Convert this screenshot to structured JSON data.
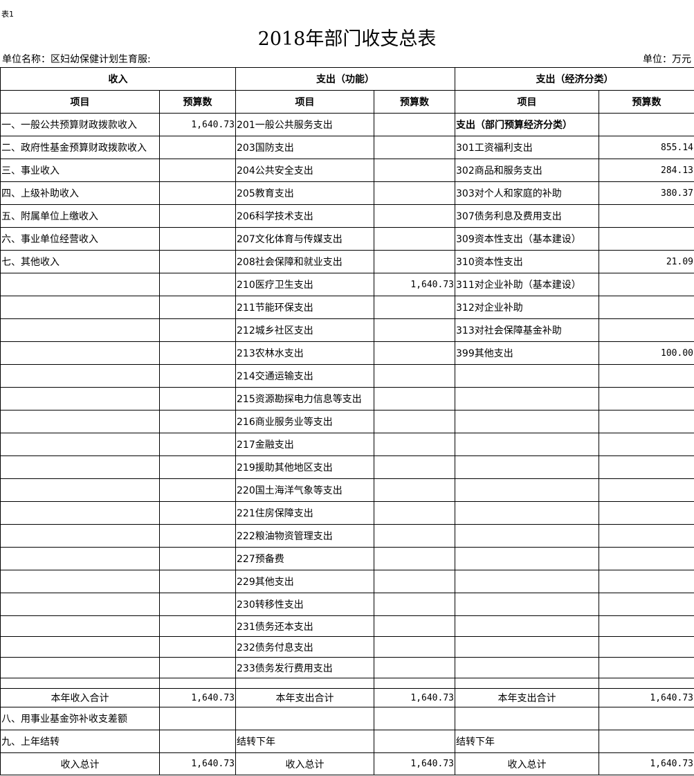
{
  "tag": "表1",
  "title": "2018年部门收支总表",
  "unit_name": "单位名称：区妇幼保健计划生育服:",
  "unit": "单位：万元",
  "groups": [
    "收入",
    "支出（功能）",
    "支出（经济分类）"
  ],
  "subheaders": [
    "项目",
    "预算数",
    "项目",
    "预算数",
    "项目",
    "预算数"
  ],
  "rows": [
    [
      "一、一般公共预算财政拨款收入",
      "1,640.73",
      "201一般公共服务支出",
      "",
      "支出（部门预算经济分类）",
      ""
    ],
    [
      "二、政府性基金预算财政拨款收入",
      "",
      "203国防支出",
      "",
      "301工资福利支出",
      "855.14"
    ],
    [
      "三、事业收入",
      "",
      "204公共安全支出",
      "",
      "302商品和服务支出",
      "284.13"
    ],
    [
      "四、上级补助收入",
      "",
      "205教育支出",
      "",
      "303对个人和家庭的补助",
      "380.37"
    ],
    [
      "五、附属单位上缴收入",
      "",
      "206科学技术支出",
      "",
      "307债务利息及费用支出",
      ""
    ],
    [
      "六、事业单位经营收入",
      "",
      "207文化体育与传媒支出",
      "",
      "309资本性支出（基本建设）",
      ""
    ],
    [
      "七、其他收入",
      "",
      "208社会保障和就业支出",
      "",
      "310资本性支出",
      "21.09"
    ],
    [
      "",
      "",
      "210医疗卫生支出",
      "1,640.73",
      "311对企业补助（基本建设）",
      ""
    ],
    [
      "",
      "",
      "211节能环保支出",
      "",
      "312对企业补助",
      ""
    ],
    [
      "",
      "",
      "212城乡社区支出",
      "",
      "313对社会保障基金补助",
      ""
    ],
    [
      "",
      "",
      "213农林水支出",
      "",
      "399其他支出",
      "100.00"
    ],
    [
      "",
      "",
      "214交通运输支出",
      "",
      "",
      ""
    ],
    [
      "",
      "",
      "215资源勘探电力信息等支出",
      "",
      "",
      ""
    ],
    [
      "",
      "",
      "216商业服务业等支出",
      "",
      "",
      ""
    ],
    [
      "",
      "",
      "217金融支出",
      "",
      "",
      ""
    ],
    [
      "",
      "",
      "219援助其他地区支出",
      "",
      "",
      ""
    ],
    [
      "",
      "",
      "220国土海洋气象等支出",
      "",
      "",
      ""
    ],
    [
      "",
      "",
      "221住房保障支出",
      "",
      "",
      ""
    ],
    [
      "",
      "",
      "222粮油物资管理支出",
      "",
      "",
      ""
    ],
    [
      "",
      "",
      "227预备费",
      "",
      "",
      ""
    ],
    [
      "",
      "",
      "229其他支出",
      "",
      "",
      ""
    ],
    [
      "",
      "",
      "230转移性支出",
      "",
      "",
      ""
    ],
    [
      "",
      "",
      "231债务还本支出",
      "",
      "",
      ""
    ],
    [
      "",
      "",
      "232债务付息支出",
      "",
      "",
      ""
    ],
    [
      "",
      "",
      "233债务发行费用支出",
      "",
      "",
      ""
    ],
    [
      "",
      "",
      "",
      "",
      "",
      ""
    ]
  ],
  "totals": {
    "year": [
      "本年收入合计",
      "1,640.73",
      "本年支出合计",
      "1,640.73",
      "本年支出合计",
      "1,640.73"
    ],
    "fund": [
      "八、用事业基金弥补收支差额",
      "",
      "",
      "",
      "",
      ""
    ],
    "carry": [
      "九、上年结转",
      "",
      "结转下年",
      "",
      "结转下年",
      ""
    ],
    "grand": [
      "收入总计",
      "1,640.73",
      "收入总计",
      "1,640.73",
      "收入总计",
      "1,640.73"
    ]
  }
}
